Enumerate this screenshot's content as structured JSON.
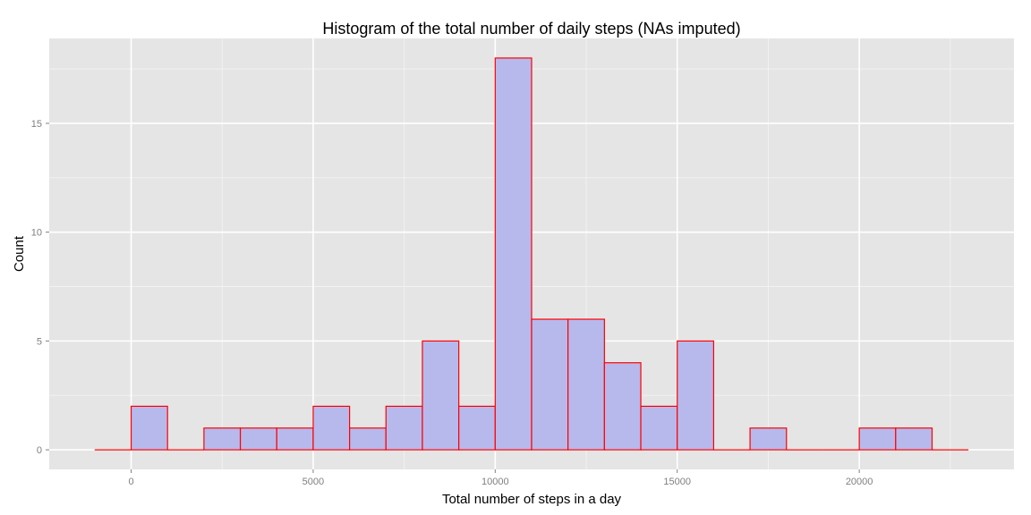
{
  "chart_data": {
    "type": "bar",
    "title": "Histogram of the total number of daily steps (NAs imputed)",
    "xlabel": "Total number of steps in a day",
    "ylabel": "Count",
    "bin_width": 1000,
    "bins": [
      {
        "start": -1000,
        "end": 0,
        "count": 0
      },
      {
        "start": 0,
        "end": 1000,
        "count": 2
      },
      {
        "start": 1000,
        "end": 2000,
        "count": 0
      },
      {
        "start": 2000,
        "end": 3000,
        "count": 1
      },
      {
        "start": 3000,
        "end": 4000,
        "count": 1
      },
      {
        "start": 4000,
        "end": 5000,
        "count": 1
      },
      {
        "start": 5000,
        "end": 6000,
        "count": 2
      },
      {
        "start": 6000,
        "end": 7000,
        "count": 1
      },
      {
        "start": 7000,
        "end": 8000,
        "count": 2
      },
      {
        "start": 8000,
        "end": 9000,
        "count": 5
      },
      {
        "start": 9000,
        "end": 10000,
        "count": 2
      },
      {
        "start": 10000,
        "end": 11000,
        "count": 18
      },
      {
        "start": 11000,
        "end": 12000,
        "count": 6
      },
      {
        "start": 12000,
        "end": 13000,
        "count": 6
      },
      {
        "start": 13000,
        "end": 14000,
        "count": 4
      },
      {
        "start": 14000,
        "end": 15000,
        "count": 2
      },
      {
        "start": 15000,
        "end": 16000,
        "count": 5
      },
      {
        "start": 16000,
        "end": 17000,
        "count": 0
      },
      {
        "start": 17000,
        "end": 18000,
        "count": 1
      },
      {
        "start": 18000,
        "end": 19000,
        "count": 0
      },
      {
        "start": 19000,
        "end": 20000,
        "count": 0
      },
      {
        "start": 20000,
        "end": 21000,
        "count": 1
      },
      {
        "start": 21000,
        "end": 22000,
        "count": 1
      },
      {
        "start": 22000,
        "end": 23000,
        "count": 0
      }
    ],
    "xlim": [
      -2250,
      24250
    ],
    "ylim": [
      -0.9,
      18.9
    ],
    "x_ticks": [
      0,
      5000,
      10000,
      15000,
      20000
    ],
    "x_tick_labels": [
      "0",
      "5000",
      "10000",
      "15000",
      "20000"
    ],
    "y_ticks": [
      0,
      5,
      10,
      15
    ],
    "y_tick_labels": [
      "0",
      "5",
      "10",
      "15"
    ],
    "grid": true,
    "colors": {
      "panel_background": "#e5e5e5",
      "grid_major": "#ffffff",
      "grid_minor": "#f2f2f2",
      "bar_fill": "#b7b9ed",
      "bar_outline": "#ff0000"
    }
  }
}
